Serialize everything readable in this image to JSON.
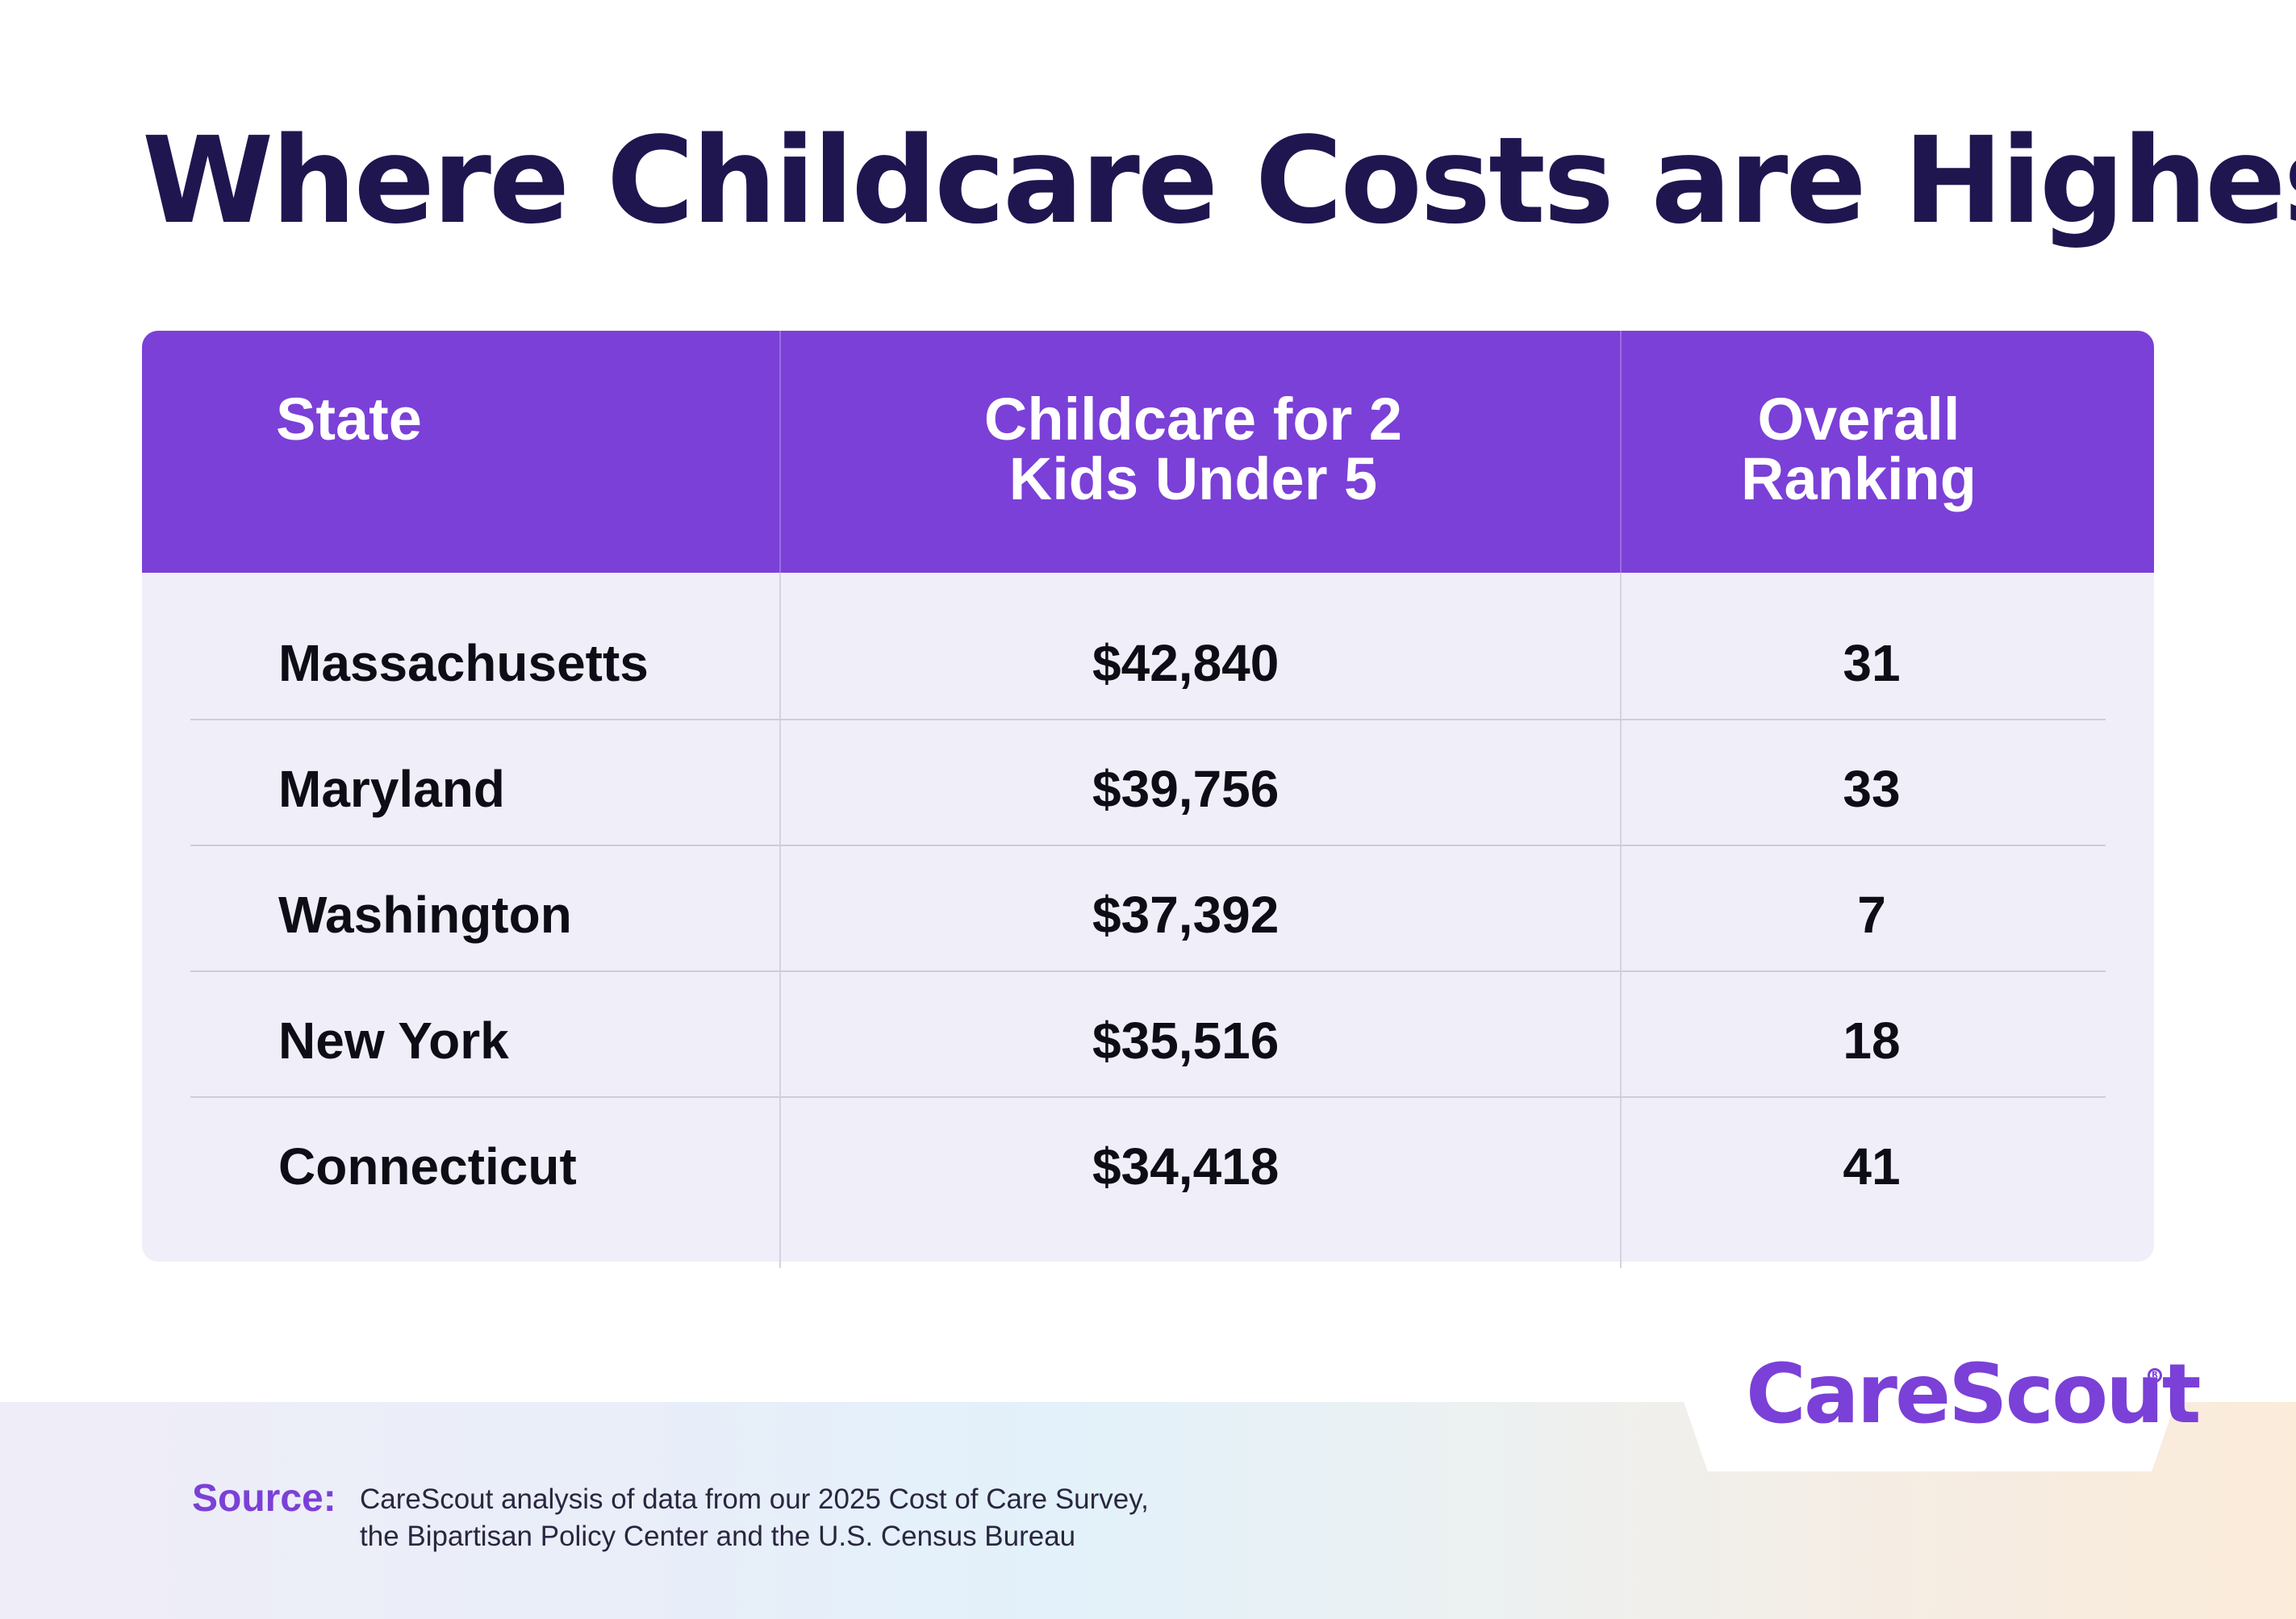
{
  "title": "Where Childcare Costs are Highest",
  "chart_data": {
    "type": "table",
    "columns": [
      {
        "label_line1": "State",
        "label_line2": ""
      },
      {
        "label_line1": "Childcare for 2",
        "label_line2": "Kids Under 5"
      },
      {
        "label_line1": "Overall",
        "label_line2": "Ranking"
      }
    ],
    "rows": [
      {
        "state": "Massachusetts",
        "cost": "$42,840",
        "cost_value": 42840,
        "ranking": "31"
      },
      {
        "state": "Maryland",
        "cost": "$39,756",
        "cost_value": 39756,
        "ranking": "33"
      },
      {
        "state": "Washington",
        "cost": "$37,392",
        "cost_value": 37392,
        "ranking": "7"
      },
      {
        "state": "New York",
        "cost": "$35,516",
        "cost_value": 35516,
        "ranking": "18"
      },
      {
        "state": "Connecticut",
        "cost": "$34,418",
        "cost_value": 34418,
        "ranking": "41"
      }
    ]
  },
  "source": {
    "label": "Source:",
    "line1": "CareScout analysis of data from our 2025 Cost of Care Survey,",
    "line2": "the Bipartisan Policy Center and the U.S. Census Bureau"
  },
  "logo": {
    "text": "CareScout",
    "registered_mark": "R"
  },
  "colors": {
    "title": "#1f1650",
    "header_bg": "#7b40d7",
    "table_bg": "#f0eef8",
    "brand_purple": "#7b40d7",
    "cell_text": "#0d0d16"
  }
}
